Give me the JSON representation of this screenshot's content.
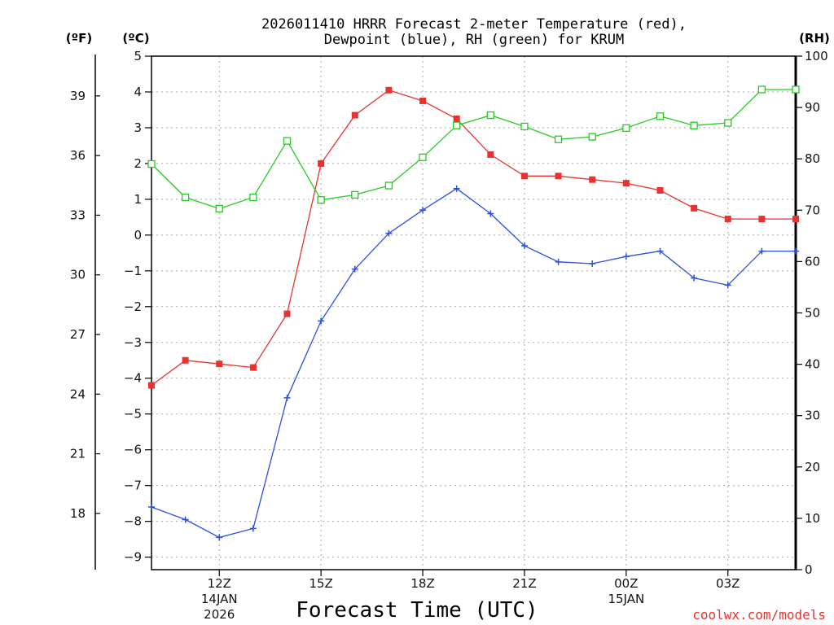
{
  "chart_data": {
    "type": "line",
    "title_line1": "2026011410 HRRR Forecast 2-meter Temperature (red),",
    "title_line2": "Dewpoint (blue), RH (green) for KRUM",
    "xlabel": "Forecast Time (UTC)",
    "credit": "coolwx.com/models",
    "units": {
      "fahrenheit": "(ºF)",
      "celsius": "(ºC)",
      "rh": "(RH)"
    },
    "x_hours": [
      10,
      11,
      12,
      13,
      14,
      15,
      16,
      17,
      18,
      19,
      20,
      21,
      22,
      23,
      24,
      25,
      26,
      27,
      28,
      29
    ],
    "x_ticks": [
      {
        "hour": 12,
        "line1": "12Z",
        "line2": "14JAN",
        "line3": "2026"
      },
      {
        "hour": 15,
        "line1": "15Z",
        "line2": "",
        "line3": ""
      },
      {
        "hour": 18,
        "line1": "18Z",
        "line2": "",
        "line3": ""
      },
      {
        "hour": 21,
        "line1": "21Z",
        "line2": "",
        "line3": ""
      },
      {
        "hour": 24,
        "line1": "00Z",
        "line2": "15JAN",
        "line3": ""
      },
      {
        "hour": 27,
        "line1": "03Z",
        "line2": "",
        "line3": ""
      }
    ],
    "y_celsius": {
      "range": [
        -9.35,
        5
      ],
      "ticks": [
        5,
        4,
        3,
        2,
        1,
        0,
        -1,
        -2,
        -3,
        -4,
        -5,
        -6,
        -7,
        -8,
        -9
      ],
      "labels": [
        "5",
        "4",
        "3",
        "2",
        "1",
        "0",
        "−1",
        "−2",
        "−3",
        "−4",
        "−5",
        "−6",
        "−7",
        "−8",
        "−9"
      ]
    },
    "y_fahrenheit": {
      "ticks": [
        39,
        36,
        33,
        30,
        27,
        24,
        21,
        18
      ],
      "labels": [
        "39",
        "36",
        "33",
        "30",
        "27",
        "24",
        "21",
        "18"
      ]
    },
    "y_rh": {
      "range": [
        0,
        100
      ],
      "ticks": [
        0,
        10,
        20,
        30,
        40,
        50,
        60,
        70,
        80,
        90,
        100
      ],
      "labels": [
        "0",
        "10",
        "20",
        "30",
        "40",
        "50",
        "60",
        "70",
        "80",
        "90",
        "100"
      ]
    },
    "series": [
      {
        "name": "Temperature",
        "unit": "C",
        "color": "#e8322f",
        "marker": "filled-square",
        "values": [
          -4.2,
          -3.5,
          -3.6,
          -3.7,
          -2.2,
          2.0,
          3.35,
          4.05,
          3.75,
          3.25,
          2.25,
          1.65,
          1.65,
          1.55,
          1.45,
          1.25,
          0.75,
          0.45,
          0.45,
          0.45
        ]
      },
      {
        "name": "Dewpoint",
        "unit": "C",
        "color": "#2c4fe0",
        "marker": "plus",
        "values": [
          -7.6,
          -7.95,
          -8.45,
          -8.2,
          -4.55,
          -2.4,
          -0.95,
          0.05,
          0.7,
          1.3,
          0.6,
          -0.3,
          -0.75,
          -0.8,
          -0.6,
          -0.45,
          -1.2,
          -1.4,
          -0.45,
          -0.45
        ]
      },
      {
        "name": "RH",
        "unit": "%",
        "color": "#22cc22",
        "marker": "open-square",
        "values": [
          79,
          72.5,
          70.3,
          72.5,
          83.5,
          72,
          73,
          74.8,
          80.3,
          86.5,
          88.5,
          86.3,
          83.8,
          84.3,
          86,
          88.3,
          86.5,
          87,
          93.5,
          93.5
        ]
      }
    ],
    "grid": true
  }
}
